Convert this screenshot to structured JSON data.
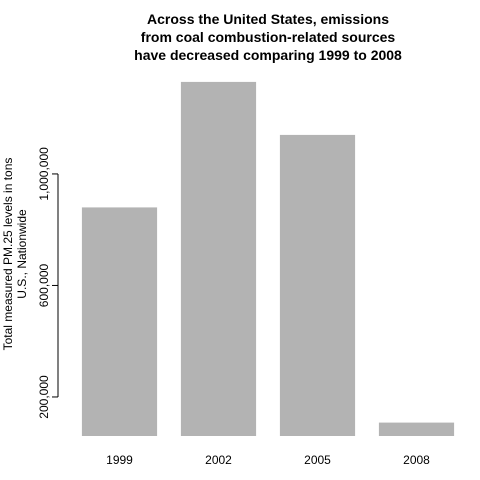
{
  "chart_data": {
    "type": "bar",
    "title_lines": [
      "Across the United States, emissions",
      "from coal combustion-related sources",
      "have decreased comparing 1999 to 2008"
    ],
    "ylabel_lines": [
      "Total measured PM.25 levels in tons",
      "U.S., Nationwide"
    ],
    "xlabel": "",
    "categories": [
      "1999",
      "2002",
      "2005",
      "2008"
    ],
    "values": [
      880000,
      1330000,
      1140000,
      108000
    ],
    "ylim": [
      60000,
      1380000
    ],
    "yticks": [
      200000,
      600000,
      1000000
    ],
    "ytick_labels": [
      "200,000",
      "600,000",
      "1,000,000"
    ],
    "bar_color": "#b3b3b3",
    "grid": false,
    "legend": "none"
  }
}
